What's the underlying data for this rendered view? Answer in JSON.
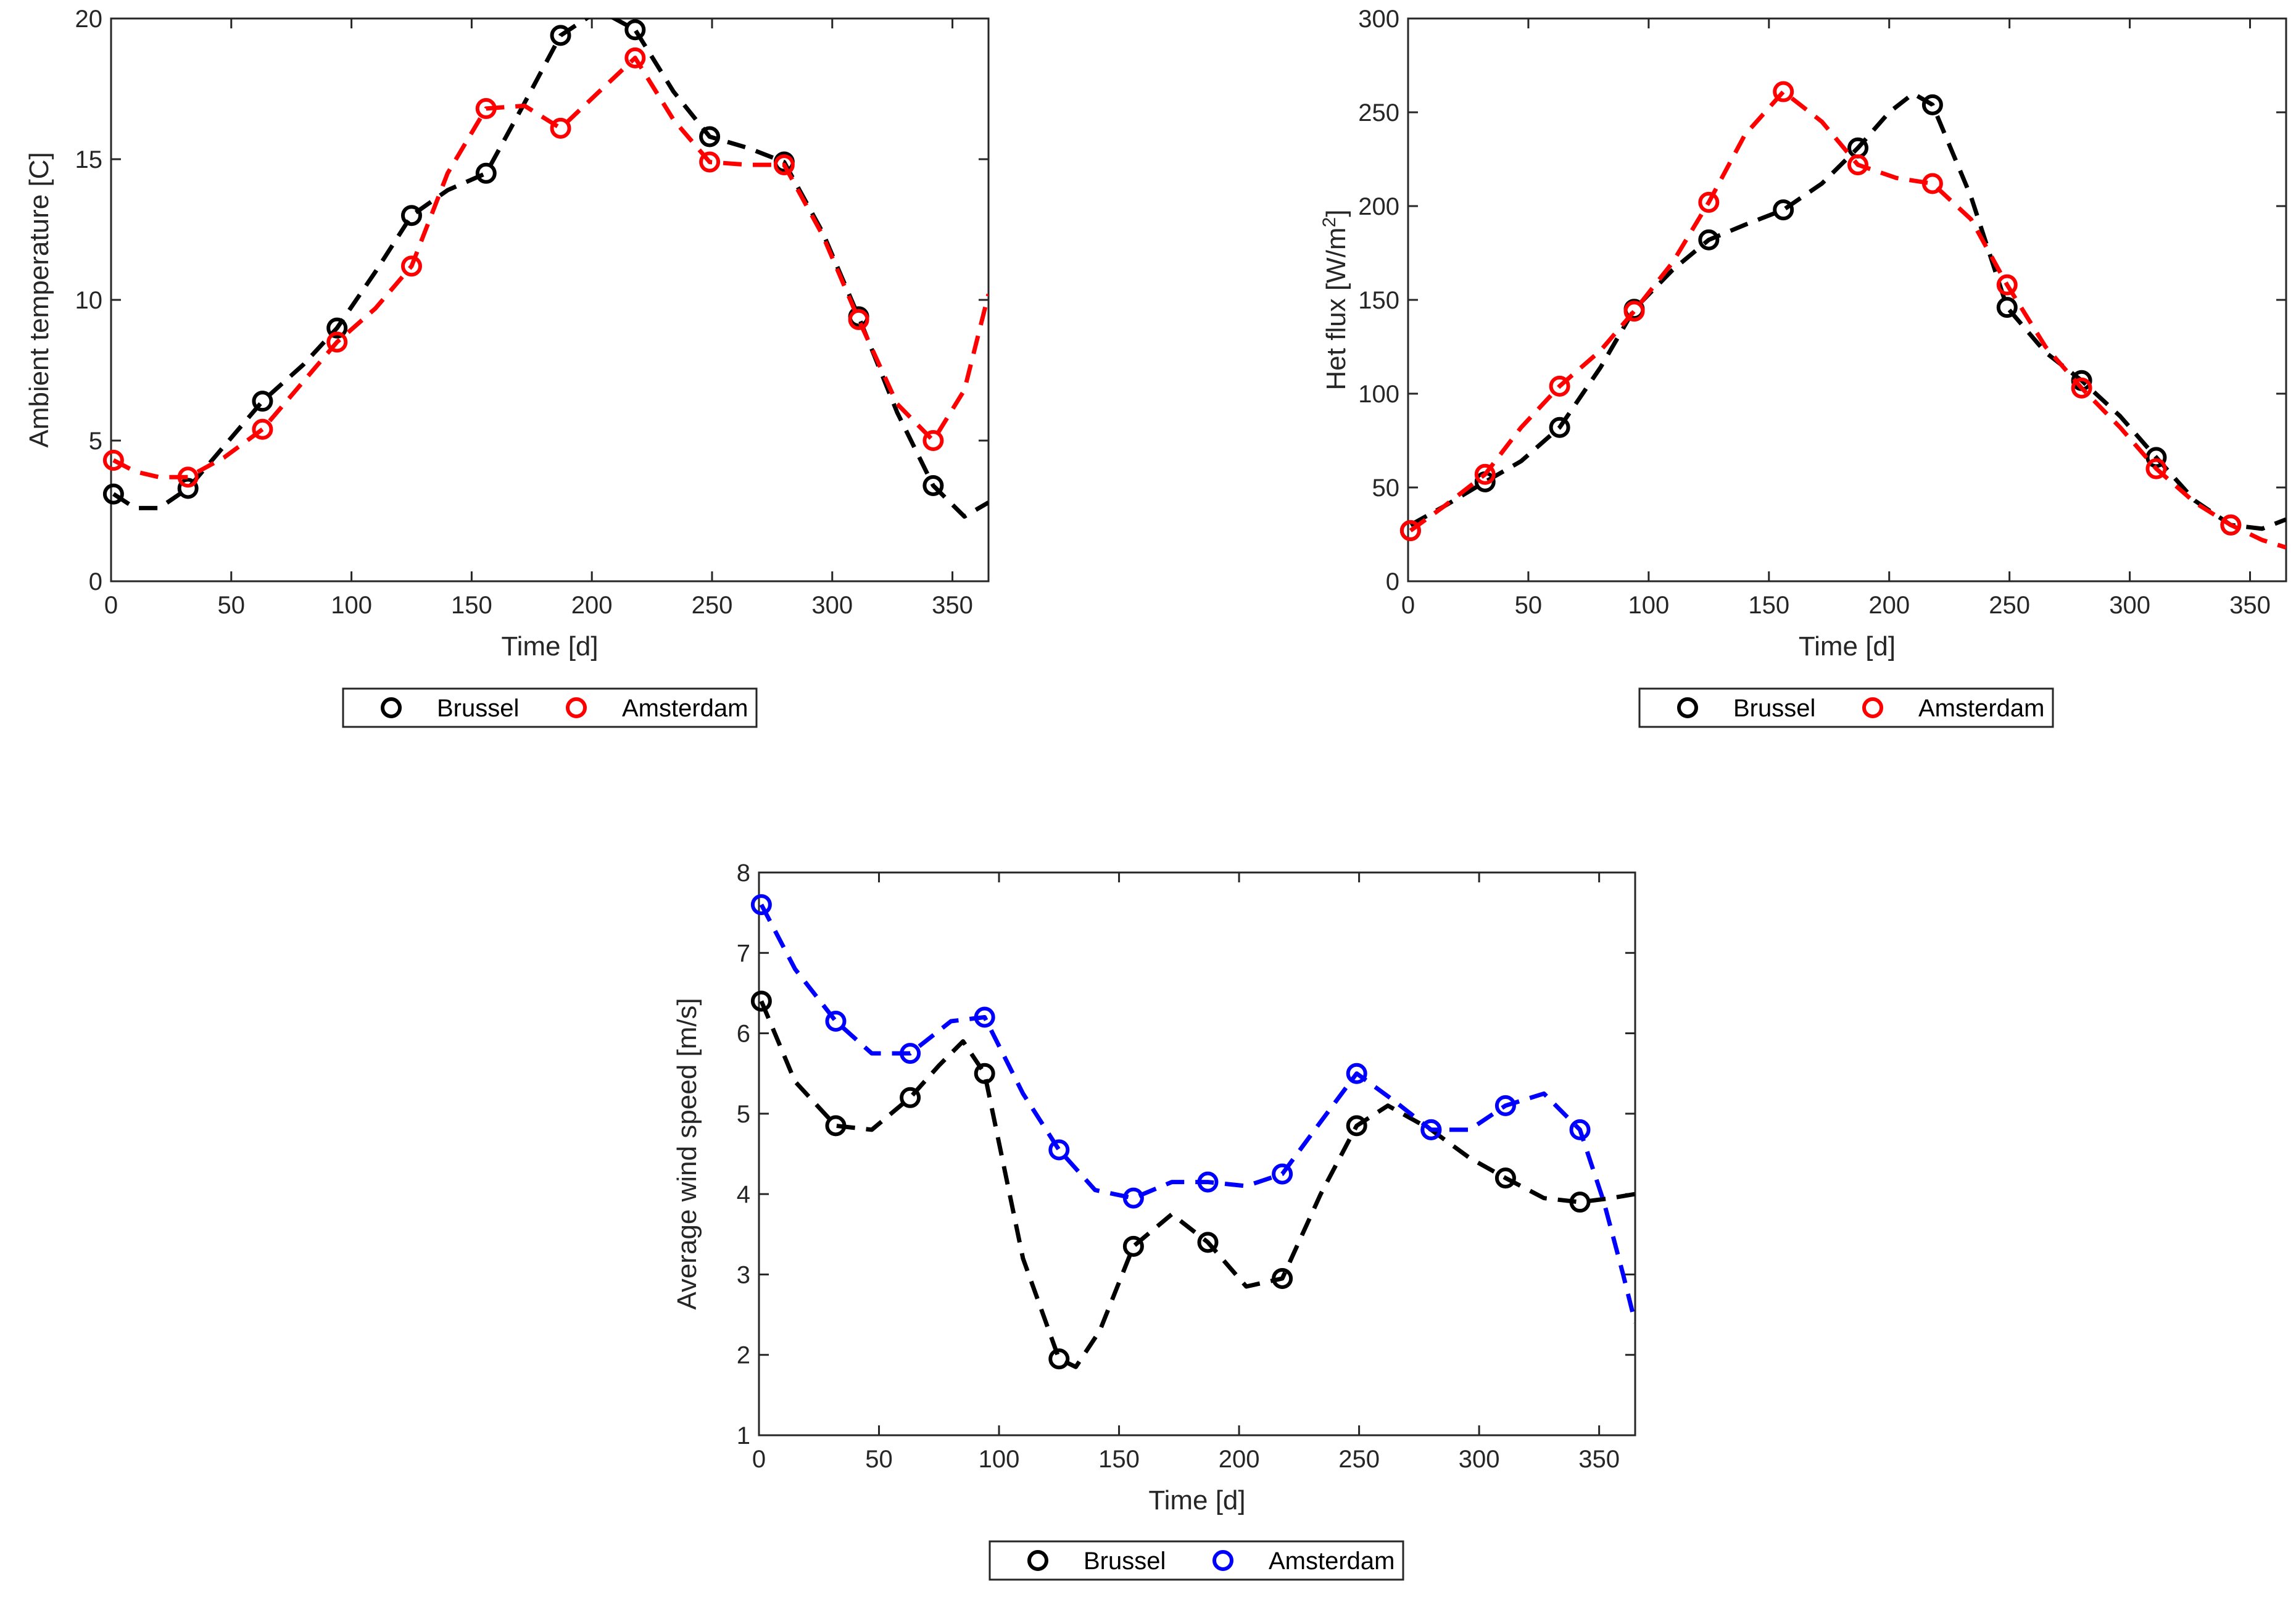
{
  "figure": {
    "legend_left_marker": "circle",
    "legend_right_marker": "circle"
  },
  "chart_data": [
    {
      "type": "line",
      "xlabel": "Time [d]",
      "ylabel": "Ambient temperature [C]",
      "xlim": [
        0,
        365
      ],
      "ylim": [
        0,
        20
      ],
      "xticks": [
        0,
        50,
        100,
        150,
        200,
        250,
        300,
        350
      ],
      "yticks": [
        0,
        5,
        10,
        15,
        20
      ],
      "grid": false,
      "legend": {
        "position": "bottom-outside",
        "entries": [
          "Brussel",
          "Amsterdam"
        ]
      },
      "series": [
        {
          "name": "Brussel",
          "color": "#000000",
          "x": [
            1,
            32,
            63,
            94,
            125,
            156,
            187,
            218,
            249,
            280,
            311,
            342
          ],
          "values": [
            3.1,
            3.3,
            6.4,
            9.0,
            13.0,
            14.5,
            19.4,
            19.6,
            15.8,
            14.9,
            9.4,
            3.4
          ],
          "curve": {
            "x": [
              1,
              10,
              20,
              32,
              47,
              63,
              80,
              94,
              110,
              125,
              140,
              156,
              172,
              187,
              203,
              218,
              234,
              249,
              265,
              280,
              296,
              311,
              327,
              342,
              355,
              365
            ],
            "y": [
              3.1,
              2.6,
              2.6,
              3.3,
              4.8,
              6.4,
              7.7,
              9.0,
              11.0,
              13.0,
              13.9,
              14.5,
              17.0,
              19.4,
              20.3,
              19.6,
              17.4,
              15.8,
              15.4,
              14.9,
              12.4,
              9.4,
              6.0,
              3.4,
              2.3,
              2.8
            ]
          }
        },
        {
          "name": "Amsterdam",
          "color": "#ff0000",
          "x": [
            1,
            32,
            63,
            94,
            125,
            156,
            187,
            218,
            249,
            280,
            311,
            342
          ],
          "values": [
            4.3,
            3.7,
            5.4,
            8.5,
            11.2,
            16.8,
            16.1,
            18.6,
            14.9,
            14.8,
            9.3,
            5.0
          ],
          "curve": {
            "x": [
              1,
              10,
              20,
              32,
              47,
              63,
              80,
              94,
              110,
              125,
              140,
              156,
              172,
              187,
              203,
              218,
              234,
              249,
              265,
              280,
              296,
              311,
              327,
              342,
              355,
              365
            ],
            "y": [
              4.3,
              3.9,
              3.7,
              3.7,
              4.4,
              5.4,
              7.1,
              8.5,
              9.7,
              11.2,
              14.5,
              16.8,
              16.9,
              16.1,
              17.4,
              18.6,
              16.4,
              14.9,
              14.8,
              14.8,
              12.3,
              9.3,
              6.3,
              5.0,
              6.8,
              10.2
            ]
          }
        }
      ]
    },
    {
      "type": "line",
      "xlabel": "Time [d]",
      "ylabel": "Het flux [W/m",
      "ylabel_superscript": "2",
      "ylabel_suffix": "]",
      "xlim": [
        0,
        365
      ],
      "ylim": [
        0,
        300
      ],
      "xticks": [
        0,
        50,
        100,
        150,
        200,
        250,
        300,
        350
      ],
      "yticks": [
        0,
        50,
        100,
        150,
        200,
        250,
        300
      ],
      "grid": false,
      "legend": {
        "position": "bottom-outside",
        "entries": [
          "Brussel",
          "Amsterdam"
        ]
      },
      "series": [
        {
          "name": "Brussel",
          "color": "#000000",
          "x": [
            1,
            32,
            63,
            94,
            125,
            156,
            187,
            218,
            249,
            280,
            311,
            342
          ],
          "values": [
            27,
            53,
            82,
            145,
            182,
            198,
            231,
            254,
            146,
            107,
            66,
            30
          ],
          "curve": {
            "x": [
              1,
              15,
              32,
              47,
              63,
              80,
              94,
              110,
              125,
              140,
              156,
              172,
              187,
              200,
              210,
              218,
              234,
              249,
              265,
              280,
              296,
              311,
              327,
              342,
              355,
              365
            ],
            "y": [
              30,
              40,
              53,
              64,
              82,
              114,
              145,
              166,
              182,
              190,
              198,
              212,
              231,
              250,
              260,
              254,
              205,
              146,
              122,
              107,
              88,
              66,
              43,
              30,
              28,
              33
            ]
          }
        },
        {
          "name": "Amsterdam",
          "color": "#ff0000",
          "x": [
            1,
            32,
            63,
            94,
            125,
            156,
            187,
            218,
            249,
            280,
            311,
            342
          ],
          "values": [
            27,
            57,
            104,
            144,
            202,
            261,
            222,
            212,
            158,
            103,
            60,
            30
          ],
          "curve": {
            "x": [
              1,
              15,
              32,
              47,
              63,
              80,
              94,
              110,
              125,
              140,
              156,
              172,
              187,
              203,
              218,
              234,
              249,
              265,
              280,
              296,
              311,
              327,
              342,
              355,
              365
            ],
            "y": [
              27,
              40,
              57,
              82,
              104,
              123,
              144,
              170,
              202,
              238,
              261,
              245,
              222,
              215,
              212,
              193,
              158,
              125,
              103,
              82,
              60,
              42,
              30,
              22,
              18
            ]
          }
        }
      ]
    },
    {
      "type": "line",
      "xlabel": "Time [d]",
      "ylabel": "Average wind speed [m/s]",
      "xlim": [
        0,
        365
      ],
      "ylim": [
        1,
        8
      ],
      "xticks": [
        0,
        50,
        100,
        150,
        200,
        250,
        300,
        350
      ],
      "yticks": [
        1,
        2,
        3,
        4,
        5,
        6,
        7,
        8
      ],
      "grid": false,
      "legend": {
        "position": "bottom-outside",
        "entries": [
          "Brussel",
          "Amsterdam"
        ]
      },
      "series": [
        {
          "name": "Brussel",
          "color": "#000000",
          "x": [
            1,
            32,
            63,
            94,
            125,
            156,
            187,
            218,
            249,
            280,
            311,
            342
          ],
          "values": [
            6.4,
            4.85,
            5.2,
            5.5,
            1.95,
            3.35,
            3.4,
            2.95,
            4.85,
            4.8,
            4.2,
            3.9
          ],
          "curve": {
            "x": [
              1,
              15,
              32,
              47,
              63,
              75,
              85,
              94,
              110,
              125,
              132,
              142,
              156,
              172,
              187,
              203,
              218,
              234,
              249,
              262,
              280,
              296,
              311,
              327,
              342,
              355,
              365
            ],
            "y": [
              6.4,
              5.4,
              4.85,
              4.8,
              5.2,
              5.6,
              5.9,
              5.5,
              3.2,
              1.95,
              1.85,
              2.3,
              3.35,
              3.75,
              3.4,
              2.85,
              2.95,
              4.0,
              4.85,
              5.1,
              4.8,
              4.45,
              4.2,
              3.95,
              3.9,
              3.95,
              4.0
            ]
          }
        },
        {
          "name": "Amsterdam",
          "color": "#0000ff",
          "x": [
            1,
            32,
            63,
            94,
            125,
            156,
            187,
            218,
            249,
            280,
            311,
            342
          ],
          "values": [
            7.6,
            6.15,
            5.75,
            6.2,
            4.55,
            3.95,
            4.15,
            4.25,
            5.5,
            4.8,
            5.1,
            4.8
          ],
          "curve": {
            "x": [
              1,
              15,
              32,
              47,
              63,
              80,
              94,
              110,
              125,
              140,
              156,
              172,
              187,
              203,
              218,
              234,
              249,
              265,
              280,
              296,
              311,
              327,
              342,
              352,
              360,
              365
            ],
            "y": [
              7.6,
              6.8,
              6.15,
              5.75,
              5.75,
              6.15,
              6.2,
              5.25,
              4.55,
              4.05,
              3.95,
              4.15,
              4.15,
              4.1,
              4.25,
              4.9,
              5.5,
              5.15,
              4.8,
              4.8,
              5.1,
              5.25,
              4.8,
              3.9,
              3.0,
              2.4
            ]
          }
        }
      ]
    }
  ]
}
